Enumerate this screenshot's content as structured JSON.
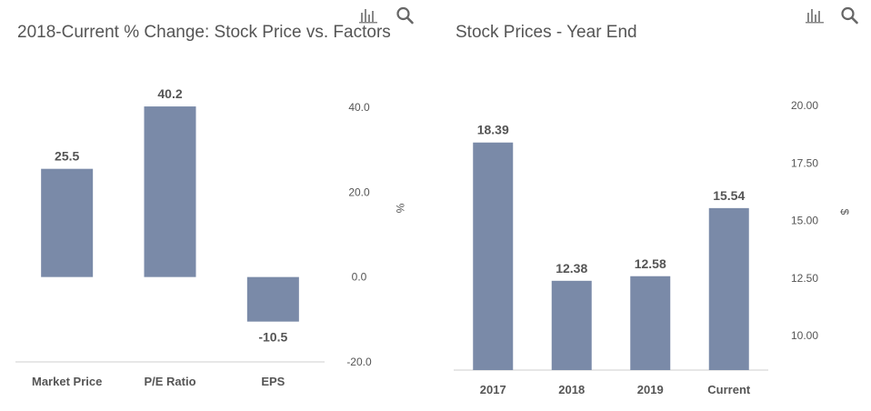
{
  "colors": {
    "bar": "#7a8aa8",
    "text": "#555555",
    "title": "#555555",
    "icon": "#888888"
  },
  "icons": {
    "chart_type": "bar-chart-icon",
    "search": "search-icon"
  },
  "chart_data": [
    {
      "type": "bar",
      "title": "2018-Current % Change: Stock Price vs. Factors",
      "categories": [
        "Market Price",
        "P/E Ratio",
        "EPS"
      ],
      "values": [
        25.5,
        40.2,
        -10.5
      ],
      "value_labels": [
        "25.5",
        "40.2",
        "-10.5"
      ],
      "ylabel": "%",
      "ylim": [
        -20,
        40
      ],
      "yticks": [
        40,
        20,
        0,
        -20
      ],
      "ytick_labels": [
        "40.0",
        "20.0",
        "0.0",
        "-20.0"
      ],
      "yaxis_position": "right",
      "grid": false
    },
    {
      "type": "bar",
      "title": "Stock Prices - Year End",
      "categories": [
        "2017",
        "2018",
        "2019",
        "Current"
      ],
      "values": [
        18.39,
        12.38,
        12.58,
        15.54
      ],
      "value_labels": [
        "18.39",
        "12.38",
        "12.58",
        "15.54"
      ],
      "ylabel": "$",
      "ylim": [
        8.5,
        20
      ],
      "yticks": [
        20,
        17.5,
        15,
        12.5,
        10
      ],
      "ytick_labels": [
        "20.00",
        "17.50",
        "15.00",
        "12.50",
        "10.00"
      ],
      "yaxis_position": "right",
      "grid": false
    }
  ]
}
